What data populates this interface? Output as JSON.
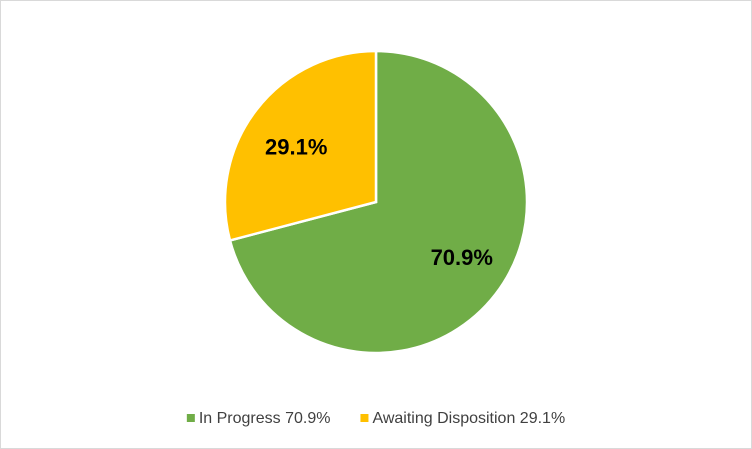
{
  "chart_data": {
    "type": "pie",
    "categories": [
      "In Progress 70.9%",
      "Awaiting Disposition 29.1%"
    ],
    "values": [
      70.9,
      29.1
    ],
    "value_labels": [
      "70.9%",
      "29.1%"
    ],
    "colors": [
      "#70ad47",
      "#ffc000"
    ],
    "legend": "bottom"
  }
}
